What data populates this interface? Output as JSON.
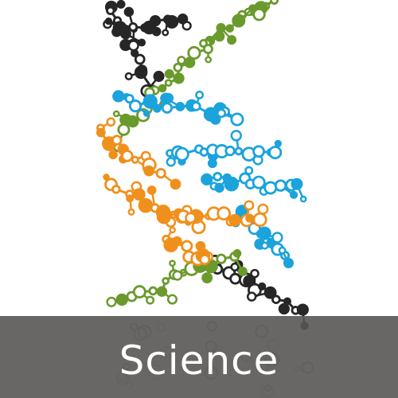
{
  "tile": {
    "caption": "Science"
  },
  "colors": {
    "background": "#ffffff",
    "strand_black": "#262626",
    "strand_green": "#6a9a2c",
    "strand_blue": "#1ba3dc",
    "strand_orange": "#f0901c",
    "caption_bar": "#585654",
    "caption_text": "#ffffff"
  },
  "illustration": {
    "subject": "dna-double-helix-molecule-icon"
  }
}
